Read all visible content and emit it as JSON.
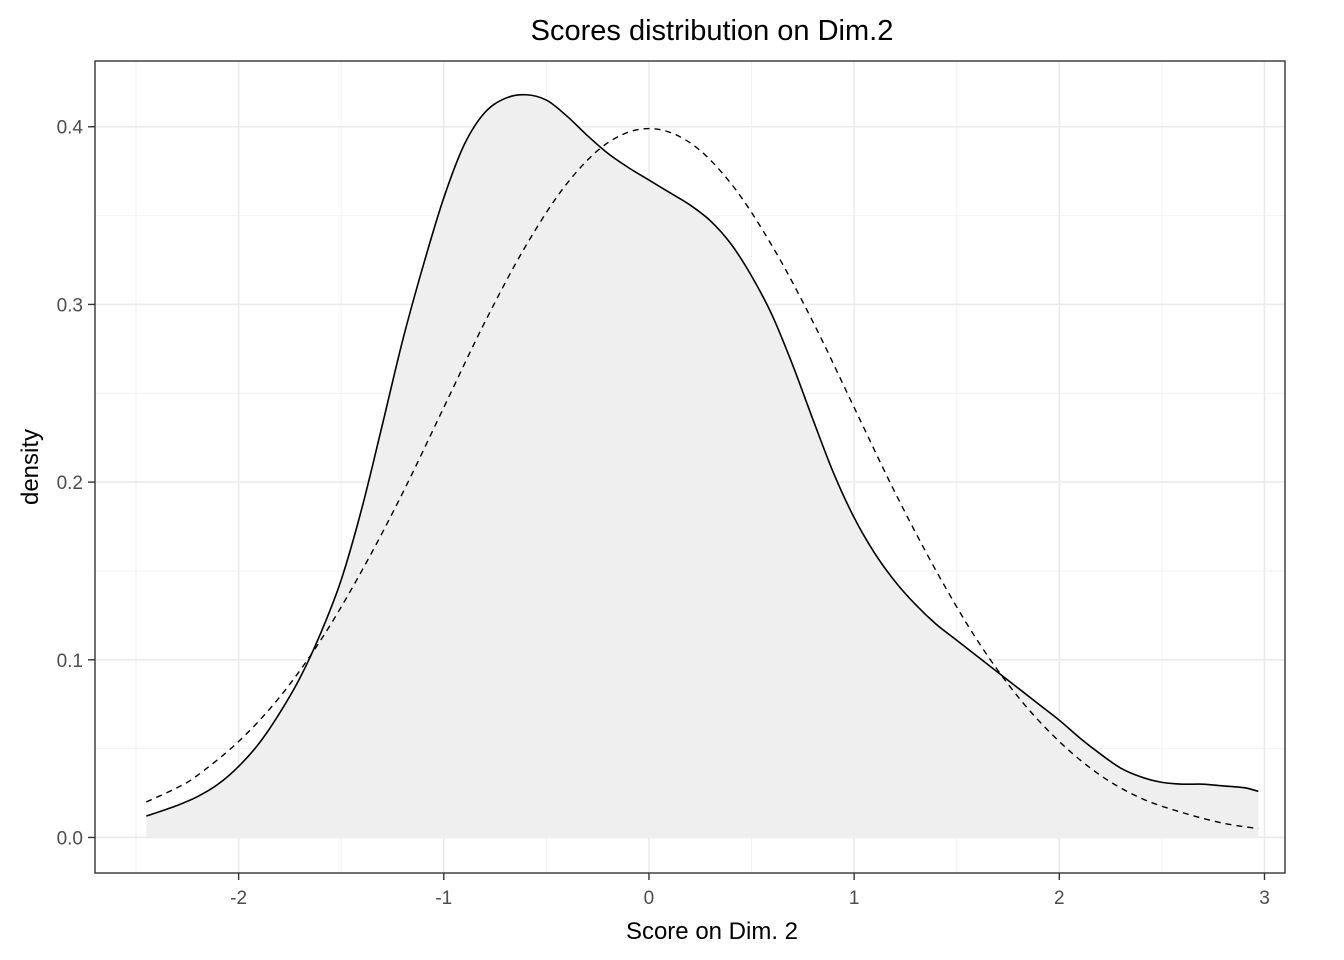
{
  "chart_data": {
    "type": "area",
    "title": "Scores distribution on Dim.2",
    "xlabel": "Score on Dim. 2",
    "ylabel": "density",
    "xlim": [
      -2.7,
      3.1
    ],
    "ylim": [
      -0.02,
      0.437
    ],
    "x_ticks": [
      -2,
      -1,
      0,
      1,
      2,
      3
    ],
    "x_tick_labels": [
      "-2",
      "-1",
      "0",
      "1",
      "2",
      "3"
    ],
    "y_ticks": [
      0.0,
      0.1,
      0.2,
      0.3,
      0.4
    ],
    "y_tick_labels": [
      "0.0",
      "0.1",
      "0.2",
      "0.3",
      "0.4"
    ],
    "grid": true,
    "legend": "none",
    "series": [
      {
        "style": "solid",
        "fill": "#efefef",
        "x": [
          -2.45,
          -2.3,
          -2.2,
          -2.1,
          -2.0,
          -1.9,
          -1.8,
          -1.7,
          -1.6,
          -1.5,
          -1.4,
          -1.3,
          -1.2,
          -1.1,
          -1.0,
          -0.9,
          -0.8,
          -0.7,
          -0.6,
          -0.5,
          -0.4,
          -0.3,
          -0.2,
          -0.1,
          0.0,
          0.1,
          0.2,
          0.3,
          0.4,
          0.5,
          0.6,
          0.7,
          0.8,
          0.9,
          1.0,
          1.1,
          1.2,
          1.3,
          1.4,
          1.5,
          1.6,
          1.7,
          1.8,
          1.9,
          2.0,
          2.1,
          2.2,
          2.3,
          2.4,
          2.5,
          2.6,
          2.7,
          2.8,
          2.9,
          2.97
        ],
        "y": [
          0.012,
          0.018,
          0.023,
          0.03,
          0.04,
          0.053,
          0.07,
          0.09,
          0.115,
          0.145,
          0.185,
          0.232,
          0.28,
          0.322,
          0.36,
          0.39,
          0.408,
          0.416,
          0.418,
          0.415,
          0.406,
          0.395,
          0.385,
          0.377,
          0.37,
          0.363,
          0.356,
          0.347,
          0.334,
          0.316,
          0.294,
          0.266,
          0.235,
          0.205,
          0.18,
          0.16,
          0.144,
          0.131,
          0.12,
          0.111,
          0.102,
          0.093,
          0.084,
          0.075,
          0.066,
          0.056,
          0.047,
          0.039,
          0.034,
          0.031,
          0.03,
          0.03,
          0.029,
          0.028,
          0.026
        ]
      },
      {
        "style": "dashed",
        "x": [
          -2.45,
          -2.3,
          -2.2,
          -2.0,
          -1.8,
          -1.6,
          -1.4,
          -1.2,
          -1.0,
          -0.8,
          -0.6,
          -0.4,
          -0.2,
          0.0,
          0.2,
          0.4,
          0.6,
          0.8,
          1.0,
          1.2,
          1.4,
          1.6,
          1.8,
          2.0,
          2.2,
          2.4,
          2.6,
          2.8,
          2.97
        ],
        "y": [
          0.02,
          0.028,
          0.035,
          0.054,
          0.079,
          0.111,
          0.15,
          0.194,
          0.242,
          0.29,
          0.333,
          0.368,
          0.391,
          0.399,
          0.391,
          0.368,
          0.333,
          0.29,
          0.242,
          0.194,
          0.15,
          0.111,
          0.079,
          0.054,
          0.035,
          0.022,
          0.014,
          0.008,
          0.005
        ]
      }
    ]
  }
}
